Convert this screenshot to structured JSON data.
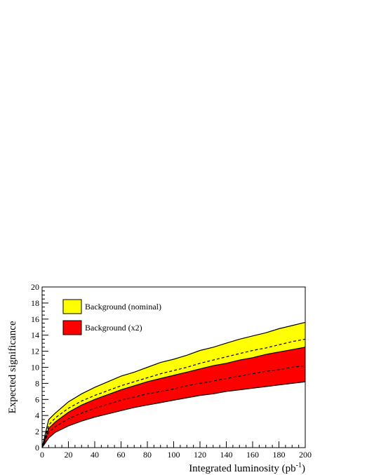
{
  "chart_data": {
    "type": "area",
    "xlabel_main": "Integrated luminosity (pb",
    "xlabel_sup": "-1",
    "xlabel_close": ")",
    "ylabel": "Expected significance",
    "xlim": [
      0,
      200
    ],
    "ylim": [
      0,
      20
    ],
    "x_ticks": [
      "0",
      "20",
      "40",
      "60",
      "80",
      "100",
      "120",
      "140",
      "160",
      "180",
      "200"
    ],
    "y_ticks": [
      "0",
      "2",
      "4",
      "6",
      "8",
      "10",
      "12",
      "14",
      "16",
      "18",
      "20"
    ],
    "grid": false,
    "legend_position": "top-left",
    "x": [
      0,
      5,
      10,
      20,
      30,
      40,
      50,
      60,
      70,
      80,
      90,
      100,
      110,
      120,
      130,
      140,
      150,
      160,
      170,
      180,
      190,
      200
    ],
    "series": [
      {
        "name": "Background (nominal)",
        "color": "#ffff00",
        "central": [
          0.0,
          2.8,
          3.7,
          4.9,
          5.8,
          6.5,
          7.1,
          7.7,
          8.2,
          8.7,
          9.2,
          9.6,
          10.0,
          10.5,
          10.9,
          11.3,
          11.7,
          12.1,
          12.4,
          12.8,
          13.2,
          13.5
        ],
        "upper": [
          0.0,
          3.5,
          4.3,
          5.7,
          6.7,
          7.5,
          8.2,
          8.9,
          9.4,
          10.0,
          10.6,
          11.0,
          11.5,
          12.1,
          12.5,
          13.0,
          13.5,
          13.9,
          14.3,
          14.8,
          15.2,
          15.6
        ],
        "lower": [
          0.0,
          1.9,
          2.6,
          3.7,
          4.4,
          5.0,
          5.4,
          5.8,
          6.2,
          6.6,
          6.9,
          7.3,
          7.6,
          8.0,
          8.3,
          8.6,
          8.9,
          9.2,
          9.5,
          9.8,
          10.1,
          10.3
        ]
      },
      {
        "name": "Background (x2)",
        "color": "#ff0000",
        "central": [
          0.0,
          1.9,
          2.6,
          3.6,
          4.3,
          4.9,
          5.4,
          5.9,
          6.3,
          6.7,
          7.0,
          7.3,
          7.7,
          8.0,
          8.3,
          8.6,
          8.9,
          9.2,
          9.5,
          9.7,
          10.0,
          10.2
        ],
        "upper": [
          0.0,
          2.4,
          3.2,
          4.4,
          5.3,
          6.0,
          6.6,
          7.2,
          7.7,
          8.2,
          8.6,
          9.0,
          9.4,
          9.8,
          10.2,
          10.5,
          10.9,
          11.2,
          11.6,
          11.9,
          12.2,
          12.5
        ],
        "lower": [
          0.0,
          1.2,
          1.9,
          2.7,
          3.3,
          3.8,
          4.2,
          4.6,
          5.0,
          5.3,
          5.6,
          5.9,
          6.2,
          6.5,
          6.7,
          7.0,
          7.2,
          7.4,
          7.6,
          7.8,
          8.0,
          8.2
        ]
      }
    ]
  }
}
